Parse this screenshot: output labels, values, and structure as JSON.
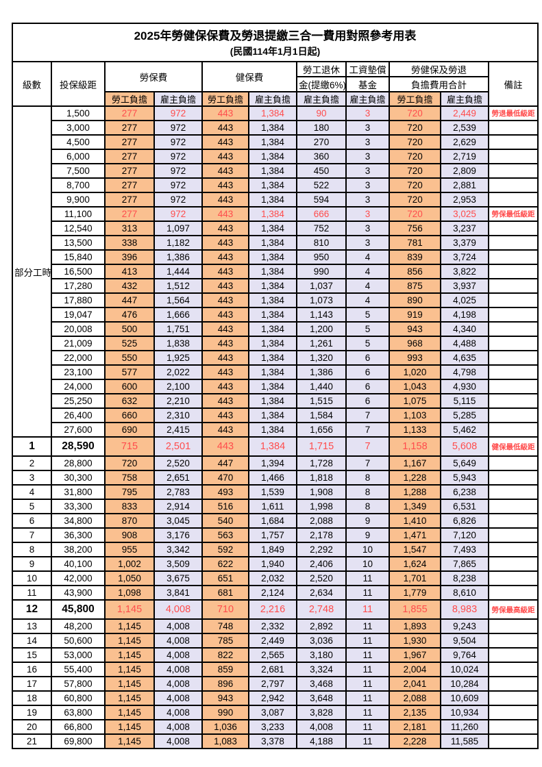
{
  "title": "2025年勞健保保費及勞退提繳三合一費用對照參考用表",
  "subtitle": "(民國114年1月1日起)",
  "colors": {
    "orange": "#FAC090",
    "lavender": "#E4E2F3",
    "red": "#FF4C4C",
    "border": "#000000"
  },
  "columns": {
    "level": "級數",
    "bracket": "投保級距",
    "labor": "勞保費",
    "health": "健保費",
    "pension_l1": "勞工退休",
    "pension_l2": "金(提繳6%)",
    "wage_l1": "工資墊償",
    "wage_l2": "基金",
    "total_l1": "勞健保及勞退",
    "total_l2": "負擔費用合計",
    "note": "備註",
    "employee": "勞工負擔",
    "employer": "雇主負擔"
  },
  "part_time": {
    "label": "部分工時",
    "rowspan": 23
  },
  "table": {
    "rows": [
      {
        "level": "",
        "bracket": "1,500",
        "labor_emp": "277",
        "labor_er": "972",
        "health_emp": "443",
        "health_er": "1,384",
        "pension": "90",
        "wage_fund": "3",
        "total_emp": "720",
        "total_er": "2,449",
        "note": "勞退最低級距",
        "red": true,
        "bold": false
      },
      {
        "level": "",
        "bracket": "3,000",
        "labor_emp": "277",
        "labor_er": "972",
        "health_emp": "443",
        "health_er": "1,384",
        "pension": "180",
        "wage_fund": "3",
        "total_emp": "720",
        "total_er": "2,539",
        "note": "",
        "red": false,
        "bold": false
      },
      {
        "level": "",
        "bracket": "4,500",
        "labor_emp": "277",
        "labor_er": "972",
        "health_emp": "443",
        "health_er": "1,384",
        "pension": "270",
        "wage_fund": "3",
        "total_emp": "720",
        "total_er": "2,629",
        "note": "",
        "red": false,
        "bold": false
      },
      {
        "level": "",
        "bracket": "6,000",
        "labor_emp": "277",
        "labor_er": "972",
        "health_emp": "443",
        "health_er": "1,384",
        "pension": "360",
        "wage_fund": "3",
        "total_emp": "720",
        "total_er": "2,719",
        "note": "",
        "red": false,
        "bold": false
      },
      {
        "level": "",
        "bracket": "7,500",
        "labor_emp": "277",
        "labor_er": "972",
        "health_emp": "443",
        "health_er": "1,384",
        "pension": "450",
        "wage_fund": "3",
        "total_emp": "720",
        "total_er": "2,809",
        "note": "",
        "red": false,
        "bold": false
      },
      {
        "level": "",
        "bracket": "8,700",
        "labor_emp": "277",
        "labor_er": "972",
        "health_emp": "443",
        "health_er": "1,384",
        "pension": "522",
        "wage_fund": "3",
        "total_emp": "720",
        "total_er": "2,881",
        "note": "",
        "red": false,
        "bold": false
      },
      {
        "level": "",
        "bracket": "9,900",
        "labor_emp": "277",
        "labor_er": "972",
        "health_emp": "443",
        "health_er": "1,384",
        "pension": "594",
        "wage_fund": "3",
        "total_emp": "720",
        "total_er": "2,953",
        "note": "",
        "red": false,
        "bold": false
      },
      {
        "level": "",
        "bracket": "11,100",
        "labor_emp": "277",
        "labor_er": "972",
        "health_emp": "443",
        "health_er": "1,384",
        "pension": "666",
        "wage_fund": "3",
        "total_emp": "720",
        "total_er": "3,025",
        "note": "勞保最低級距",
        "red": true,
        "bold": false
      },
      {
        "level": "",
        "bracket": "12,540",
        "labor_emp": "313",
        "labor_er": "1,097",
        "health_emp": "443",
        "health_er": "1,384",
        "pension": "752",
        "wage_fund": "3",
        "total_emp": "756",
        "total_er": "3,237",
        "note": "",
        "red": false,
        "bold": false
      },
      {
        "level": "",
        "bracket": "13,500",
        "labor_emp": "338",
        "labor_er": "1,182",
        "health_emp": "443",
        "health_er": "1,384",
        "pension": "810",
        "wage_fund": "3",
        "total_emp": "781",
        "total_er": "3,379",
        "note": "",
        "red": false,
        "bold": false
      },
      {
        "level": "",
        "bracket": "15,840",
        "labor_emp": "396",
        "labor_er": "1,386",
        "health_emp": "443",
        "health_er": "1,384",
        "pension": "950",
        "wage_fund": "4",
        "total_emp": "839",
        "total_er": "3,724",
        "note": "",
        "red": false,
        "bold": false
      },
      {
        "level": "",
        "bracket": "16,500",
        "labor_emp": "413",
        "labor_er": "1,444",
        "health_emp": "443",
        "health_er": "1,384",
        "pension": "990",
        "wage_fund": "4",
        "total_emp": "856",
        "total_er": "3,822",
        "note": "",
        "red": false,
        "bold": false
      },
      {
        "level": "",
        "bracket": "17,280",
        "labor_emp": "432",
        "labor_er": "1,512",
        "health_emp": "443",
        "health_er": "1,384",
        "pension": "1,037",
        "wage_fund": "4",
        "total_emp": "875",
        "total_er": "3,937",
        "note": "",
        "red": false,
        "bold": false
      },
      {
        "level": "",
        "bracket": "17,880",
        "labor_emp": "447",
        "labor_er": "1,564",
        "health_emp": "443",
        "health_er": "1,384",
        "pension": "1,073",
        "wage_fund": "4",
        "total_emp": "890",
        "total_er": "4,025",
        "note": "",
        "red": false,
        "bold": false
      },
      {
        "level": "",
        "bracket": "19,047",
        "labor_emp": "476",
        "labor_er": "1,666",
        "health_emp": "443",
        "health_er": "1,384",
        "pension": "1,143",
        "wage_fund": "5",
        "total_emp": "919",
        "total_er": "4,198",
        "note": "",
        "red": false,
        "bold": false
      },
      {
        "level": "",
        "bracket": "20,008",
        "labor_emp": "500",
        "labor_er": "1,751",
        "health_emp": "443",
        "health_er": "1,384",
        "pension": "1,200",
        "wage_fund": "5",
        "total_emp": "943",
        "total_er": "4,340",
        "note": "",
        "red": false,
        "bold": false
      },
      {
        "level": "",
        "bracket": "21,009",
        "labor_emp": "525",
        "labor_er": "1,838",
        "health_emp": "443",
        "health_er": "1,384",
        "pension": "1,261",
        "wage_fund": "5",
        "total_emp": "968",
        "total_er": "4,488",
        "note": "",
        "red": false,
        "bold": false
      },
      {
        "level": "",
        "bracket": "22,000",
        "labor_emp": "550",
        "labor_er": "1,925",
        "health_emp": "443",
        "health_er": "1,384",
        "pension": "1,320",
        "wage_fund": "6",
        "total_emp": "993",
        "total_er": "4,635",
        "note": "",
        "red": false,
        "bold": false
      },
      {
        "level": "",
        "bracket": "23,100",
        "labor_emp": "577",
        "labor_er": "2,022",
        "health_emp": "443",
        "health_er": "1,384",
        "pension": "1,386",
        "wage_fund": "6",
        "total_emp": "1,020",
        "total_er": "4,798",
        "note": "",
        "red": false,
        "bold": false
      },
      {
        "level": "",
        "bracket": "24,000",
        "labor_emp": "600",
        "labor_er": "2,100",
        "health_emp": "443",
        "health_er": "1,384",
        "pension": "1,440",
        "wage_fund": "6",
        "total_emp": "1,043",
        "total_er": "4,930",
        "note": "",
        "red": false,
        "bold": false
      },
      {
        "level": "",
        "bracket": "25,250",
        "labor_emp": "632",
        "labor_er": "2,210",
        "health_emp": "443",
        "health_er": "1,384",
        "pension": "1,515",
        "wage_fund": "6",
        "total_emp": "1,075",
        "total_er": "5,115",
        "note": "",
        "red": false,
        "bold": false
      },
      {
        "level": "",
        "bracket": "26,400",
        "labor_emp": "660",
        "labor_er": "2,310",
        "health_emp": "443",
        "health_er": "1,384",
        "pension": "1,584",
        "wage_fund": "7",
        "total_emp": "1,103",
        "total_er": "5,285",
        "note": "",
        "red": false,
        "bold": false
      },
      {
        "level": "",
        "bracket": "27,600",
        "labor_emp": "690",
        "labor_er": "2,415",
        "health_emp": "443",
        "health_er": "1,384",
        "pension": "1,656",
        "wage_fund": "7",
        "total_emp": "1,133",
        "total_er": "5,462",
        "note": "",
        "red": false,
        "bold": false
      },
      {
        "level": "1",
        "bracket": "28,590",
        "labor_emp": "715",
        "labor_er": "2,501",
        "health_emp": "443",
        "health_er": "1,384",
        "pension": "1,715",
        "wage_fund": "7",
        "total_emp": "1,158",
        "total_er": "5,608",
        "note": "健保最低級距",
        "red": true,
        "bold": true
      },
      {
        "level": "2",
        "bracket": "28,800",
        "labor_emp": "720",
        "labor_er": "2,520",
        "health_emp": "447",
        "health_er": "1,394",
        "pension": "1,728",
        "wage_fund": "7",
        "total_emp": "1,167",
        "total_er": "5,649",
        "note": "",
        "red": false,
        "bold": false
      },
      {
        "level": "3",
        "bracket": "30,300",
        "labor_emp": "758",
        "labor_er": "2,651",
        "health_emp": "470",
        "health_er": "1,466",
        "pension": "1,818",
        "wage_fund": "8",
        "total_emp": "1,228",
        "total_er": "5,943",
        "note": "",
        "red": false,
        "bold": false
      },
      {
        "level": "4",
        "bracket": "31,800",
        "labor_emp": "795",
        "labor_er": "2,783",
        "health_emp": "493",
        "health_er": "1,539",
        "pension": "1,908",
        "wage_fund": "8",
        "total_emp": "1,288",
        "total_er": "6,238",
        "note": "",
        "red": false,
        "bold": false
      },
      {
        "level": "5",
        "bracket": "33,300",
        "labor_emp": "833",
        "labor_er": "2,914",
        "health_emp": "516",
        "health_er": "1,611",
        "pension": "1,998",
        "wage_fund": "8",
        "total_emp": "1,349",
        "total_er": "6,531",
        "note": "",
        "red": false,
        "bold": false
      },
      {
        "level": "6",
        "bracket": "34,800",
        "labor_emp": "870",
        "labor_er": "3,045",
        "health_emp": "540",
        "health_er": "1,684",
        "pension": "2,088",
        "wage_fund": "9",
        "total_emp": "1,410",
        "total_er": "6,826",
        "note": "",
        "red": false,
        "bold": false
      },
      {
        "level": "7",
        "bracket": "36,300",
        "labor_emp": "908",
        "labor_er": "3,176",
        "health_emp": "563",
        "health_er": "1,757",
        "pension": "2,178",
        "wage_fund": "9",
        "total_emp": "1,471",
        "total_er": "7,120",
        "note": "",
        "red": false,
        "bold": false
      },
      {
        "level": "8",
        "bracket": "38,200",
        "labor_emp": "955",
        "labor_er": "3,342",
        "health_emp": "592",
        "health_er": "1,849",
        "pension": "2,292",
        "wage_fund": "10",
        "total_emp": "1,547",
        "total_er": "7,493",
        "note": "",
        "red": false,
        "bold": false
      },
      {
        "level": "9",
        "bracket": "40,100",
        "labor_emp": "1,002",
        "labor_er": "3,509",
        "health_emp": "622",
        "health_er": "1,940",
        "pension": "2,406",
        "wage_fund": "10",
        "total_emp": "1,624",
        "total_er": "7,865",
        "note": "",
        "red": false,
        "bold": false
      },
      {
        "level": "10",
        "bracket": "42,000",
        "labor_emp": "1,050",
        "labor_er": "3,675",
        "health_emp": "651",
        "health_er": "2,032",
        "pension": "2,520",
        "wage_fund": "11",
        "total_emp": "1,701",
        "total_er": "8,238",
        "note": "",
        "red": false,
        "bold": false
      },
      {
        "level": "11",
        "bracket": "43,900",
        "labor_emp": "1,098",
        "labor_er": "3,841",
        "health_emp": "681",
        "health_er": "2,124",
        "pension": "2,634",
        "wage_fund": "11",
        "total_emp": "1,779",
        "total_er": "8,610",
        "note": "",
        "red": false,
        "bold": false
      },
      {
        "level": "12",
        "bracket": "45,800",
        "labor_emp": "1,145",
        "labor_er": "4,008",
        "health_emp": "710",
        "health_er": "2,216",
        "pension": "2,748",
        "wage_fund": "11",
        "total_emp": "1,855",
        "total_er": "8,983",
        "note": "勞保最高級距",
        "red": true,
        "bold": true
      },
      {
        "level": "13",
        "bracket": "48,200",
        "labor_emp": "1,145",
        "labor_er": "4,008",
        "health_emp": "748",
        "health_er": "2,332",
        "pension": "2,892",
        "wage_fund": "11",
        "total_emp": "1,893",
        "total_er": "9,243",
        "note": "",
        "red": false,
        "bold": false
      },
      {
        "level": "14",
        "bracket": "50,600",
        "labor_emp": "1,145",
        "labor_er": "4,008",
        "health_emp": "785",
        "health_er": "2,449",
        "pension": "3,036",
        "wage_fund": "11",
        "total_emp": "1,930",
        "total_er": "9,504",
        "note": "",
        "red": false,
        "bold": false
      },
      {
        "level": "15",
        "bracket": "53,000",
        "labor_emp": "1,145",
        "labor_er": "4,008",
        "health_emp": "822",
        "health_er": "2,565",
        "pension": "3,180",
        "wage_fund": "11",
        "total_emp": "1,967",
        "total_er": "9,764",
        "note": "",
        "red": false,
        "bold": false
      },
      {
        "level": "16",
        "bracket": "55,400",
        "labor_emp": "1,145",
        "labor_er": "4,008",
        "health_emp": "859",
        "health_er": "2,681",
        "pension": "3,324",
        "wage_fund": "11",
        "total_emp": "2,004",
        "total_er": "10,024",
        "note": "",
        "red": false,
        "bold": false
      },
      {
        "level": "17",
        "bracket": "57,800",
        "labor_emp": "1,145",
        "labor_er": "4,008",
        "health_emp": "896",
        "health_er": "2,797",
        "pension": "3,468",
        "wage_fund": "11",
        "total_emp": "2,041",
        "total_er": "10,284",
        "note": "",
        "red": false,
        "bold": false
      },
      {
        "level": "18",
        "bracket": "60,800",
        "labor_emp": "1,145",
        "labor_er": "4,008",
        "health_emp": "943",
        "health_er": "2,942",
        "pension": "3,648",
        "wage_fund": "11",
        "total_emp": "2,088",
        "total_er": "10,609",
        "note": "",
        "red": false,
        "bold": false
      },
      {
        "level": "19",
        "bracket": "63,800",
        "labor_emp": "1,145",
        "labor_er": "4,008",
        "health_emp": "990",
        "health_er": "3,087",
        "pension": "3,828",
        "wage_fund": "11",
        "total_emp": "2,135",
        "total_er": "10,934",
        "note": "",
        "red": false,
        "bold": false
      },
      {
        "level": "20",
        "bracket": "66,800",
        "labor_emp": "1,145",
        "labor_er": "4,008",
        "health_emp": "1,036",
        "health_er": "3,233",
        "pension": "4,008",
        "wage_fund": "11",
        "total_emp": "2,181",
        "total_er": "11,260",
        "note": "",
        "red": false,
        "bold": false
      },
      {
        "level": "21",
        "bracket": "69,800",
        "labor_emp": "1,145",
        "labor_er": "4,008",
        "health_emp": "1,083",
        "health_er": "3,378",
        "pension": "4,188",
        "wage_fund": "11",
        "total_emp": "2,228",
        "total_er": "11,585",
        "note": "",
        "red": false,
        "bold": false
      }
    ]
  }
}
